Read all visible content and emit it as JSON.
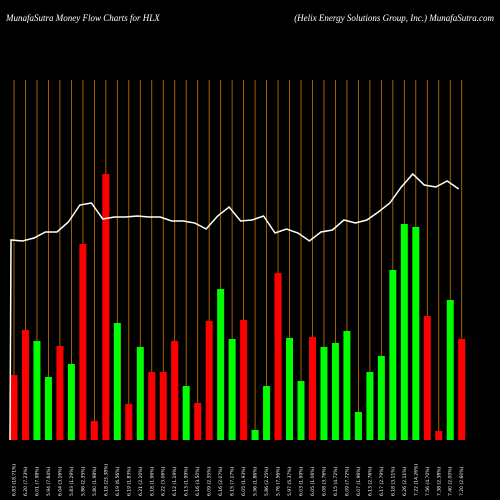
{
  "chart_data": {
    "type": "bar-line",
    "title": "MunafaSutra  Money Flow  Charts for HLX",
    "subtitle": "(Helix Energy Solutions Group, Inc.) MunafaSutra.com",
    "categories": [
      "6.83 (18.71%)",
      "6.20 (7.23%)",
      "6.01 (7.98%)",
      "5.94 (7.64%)",
      "6.04 (3.16%)",
      "5.83 (1.29%)",
      "5.86 (2.35%)",
      "5.80 (1.98%)",
      "6.18 (23.38%)",
      "6.19 (6.56%)",
      "6.19 (1.83%)",
      "6.21 (2.10%)",
      "6.18 (1.96%)",
      "6.22 (3.06%)",
      "6.12 (1.19%)",
      "6.13 (1.99%)",
      "6.16 (3.50%)",
      "6.09 (2.35%)",
      "6.16 (2.07%)",
      "6.15 (7.17%)",
      "6.05 (1.93%)",
      "5.96 (1.86%)",
      "5.86 (2.25%)",
      "5.76 (7.56%)",
      "5.97 (5.37%)",
      "6.03 (1.99%)",
      "6.05 (1.06%)",
      "6.08 (3.76%)",
      "6.15 (4.72%)",
      "6.09 (7.72%)",
      "6.07 (1.96%)",
      "6.13 (2.76%)",
      "6.17 (2.79%)",
      "6.18 (3.11%)",
      "6.26 (2.11%)",
      "7.22 (14.26%)",
      "7.56 (4.70%)",
      "7.38 (2.38%)",
      "7.40 (2.00%)",
      "7.20 (2.60%)"
    ],
    "series": [
      {
        "name": "Money Flow",
        "values": [
          65,
          110,
          99,
          63,
          94,
          76,
          196,
          19,
          266,
          117,
          36,
          93,
          68,
          68,
          99,
          54,
          37,
          119,
          151,
          101,
          120,
          10,
          54,
          167,
          102,
          59,
          103,
          93,
          97,
          109,
          28,
          68,
          84,
          170,
          216,
          213,
          124,
          9,
          140,
          101
        ],
        "colors": [
          "#ff0000",
          "#ff0000",
          "#00ff00",
          "#00ff00",
          "#ff0000",
          "#00ff00",
          "#ff0000",
          "#ff0000",
          "#ff0000",
          "#00ff00",
          "#ff0000",
          "#00ff00",
          "#ff0000",
          "#ff0000",
          "#ff0000",
          "#00ff00",
          "#ff0000",
          "#ff0000",
          "#00ff00",
          "#00ff00",
          "#ff0000",
          "#00ff00",
          "#00ff00",
          "#ff0000",
          "#00ff00",
          "#00ff00",
          "#ff0000",
          "#00ff00",
          "#00ff00",
          "#00ff00",
          "#00ff00",
          "#00ff00",
          "#00ff00",
          "#00ff00",
          "#00ff00",
          "#00ff00",
          "#ff0000",
          "#ff0000",
          "#00ff00",
          "#ff0000"
        ]
      },
      {
        "name": "Price",
        "color": "#ffffff",
        "values": [
          200,
          199,
          202,
          208,
          208,
          218,
          235,
          237,
          221,
          223,
          223,
          224,
          223,
          223,
          219,
          219,
          217,
          211,
          224,
          233,
          219,
          220,
          224,
          207,
          211,
          207,
          199,
          208,
          210,
          220,
          217,
          220,
          228,
          237,
          253,
          266,
          255,
          253,
          259,
          251
        ]
      }
    ],
    "grid_color": "#c87800"
  }
}
